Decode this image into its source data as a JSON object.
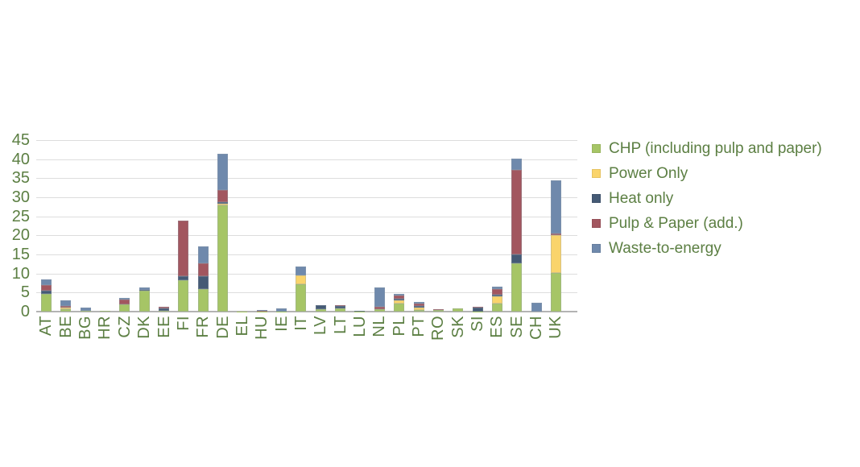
{
  "colors": {
    "background": "#ffffff",
    "text_green": "#5C7F43",
    "gridline": "#dddddd",
    "axis_line": "#b3b3b3"
  },
  "chart_data": {
    "type": "bar",
    "stacked": true,
    "title": "",
    "xlabel": "",
    "ylabel": "",
    "grid": true,
    "legend_position": "right",
    "ylim": [
      0,
      45
    ],
    "yticks": [
      0,
      5,
      10,
      15,
      20,
      25,
      30,
      35,
      40,
      45
    ],
    "categories": [
      "AT",
      "BE",
      "BG",
      "HR",
      "CZ",
      "DK",
      "EE",
      "FI",
      "FR",
      "DE",
      "EL",
      "HU",
      "IE",
      "IT",
      "LV",
      "LT",
      "LU",
      "NL",
      "PL",
      "PT",
      "RO",
      "SK",
      "SI",
      "ES",
      "SE",
      "CH",
      "UK"
    ],
    "series": [
      {
        "name": "CHP (including pulp and paper)",
        "color": "#A6C566",
        "values": [
          4.6,
          0.6,
          0.2,
          0.2,
          1.9,
          5.4,
          0.2,
          8.2,
          6.0,
          27.9,
          0.05,
          0.1,
          0.1,
          7.2,
          0.7,
          0.8,
          0.1,
          0.6,
          2.1,
          0.5,
          0.5,
          0.9,
          0.1,
          2.2,
          12.7,
          0,
          10.2
        ]
      },
      {
        "name": "Power Only",
        "color": "#FAD46B",
        "values": [
          0,
          0.4,
          0,
          0,
          0,
          0,
          0,
          0,
          0,
          0.4,
          0,
          0,
          0,
          2.3,
          0,
          0,
          0,
          0,
          0.85,
          0.65,
          0,
          0,
          0,
          1.8,
          0,
          0,
          9.9
        ]
      },
      {
        "name": "Heat only",
        "color": "#455A75",
        "values": [
          0.8,
          0,
          0,
          0,
          0,
          0.4,
          0.6,
          1.2,
          3.4,
          0.4,
          0,
          0,
          0,
          0,
          0.9,
          0.6,
          0.1,
          0,
          0.4,
          0.4,
          0,
          0,
          0.9,
          0.4,
          2.4,
          0,
          0
        ]
      },
      {
        "name": "Pulp & Paper (add.)",
        "color": "#A2565F",
        "values": [
          1.5,
          0.4,
          0,
          0,
          1.3,
          0,
          0.4,
          14.5,
          3.3,
          3.2,
          0,
          0.1,
          0,
          0,
          0,
          0.3,
          0,
          0.6,
          0.85,
          0.5,
          0.2,
          0,
          0.2,
          1.6,
          22.0,
          0,
          0.4
        ]
      },
      {
        "name": "Waste-to-energy",
        "color": "#6F89AC",
        "values": [
          1.5,
          1.5,
          0.8,
          0,
          0.4,
          0.5,
          0,
          0,
          4.4,
          9.5,
          0,
          0.2,
          0.8,
          2.4,
          0,
          0,
          0,
          5.1,
          0.4,
          0.4,
          0,
          0,
          0,
          0.5,
          3.0,
          2.3,
          14.0
        ]
      }
    ]
  }
}
